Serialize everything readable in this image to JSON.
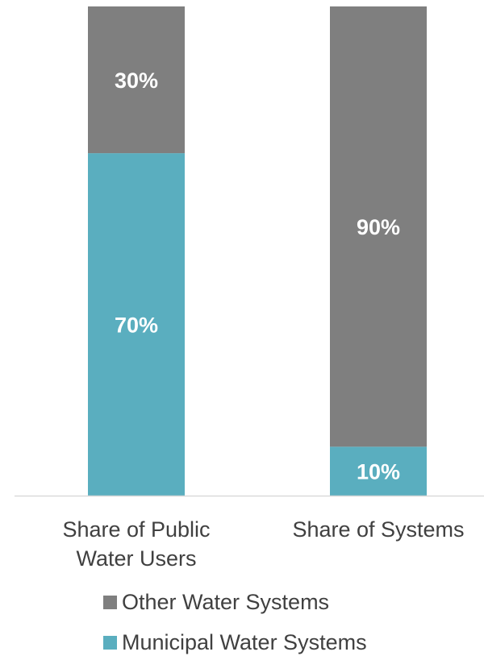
{
  "chart_data": {
    "type": "bar",
    "stacked": true,
    "percent_stacked": true,
    "categories": [
      [
        "Share of Public",
        "Water Users"
      ],
      [
        "Share of Systems"
      ]
    ],
    "series": [
      {
        "name": "Municipal Water Systems",
        "color": "#5aaebf",
        "values": [
          70,
          10
        ],
        "labels": [
          "70%",
          "10%"
        ]
      },
      {
        "name": "Other Water Systems",
        "color": "#7f7f7f",
        "values": [
          30,
          90
        ],
        "labels": [
          "30%",
          "90%"
        ]
      }
    ],
    "ylim": [
      0,
      100
    ],
    "grid": false,
    "legend_position": "bottom",
    "legend_order": [
      "Other Water Systems",
      "Municipal Water Systems"
    ]
  }
}
